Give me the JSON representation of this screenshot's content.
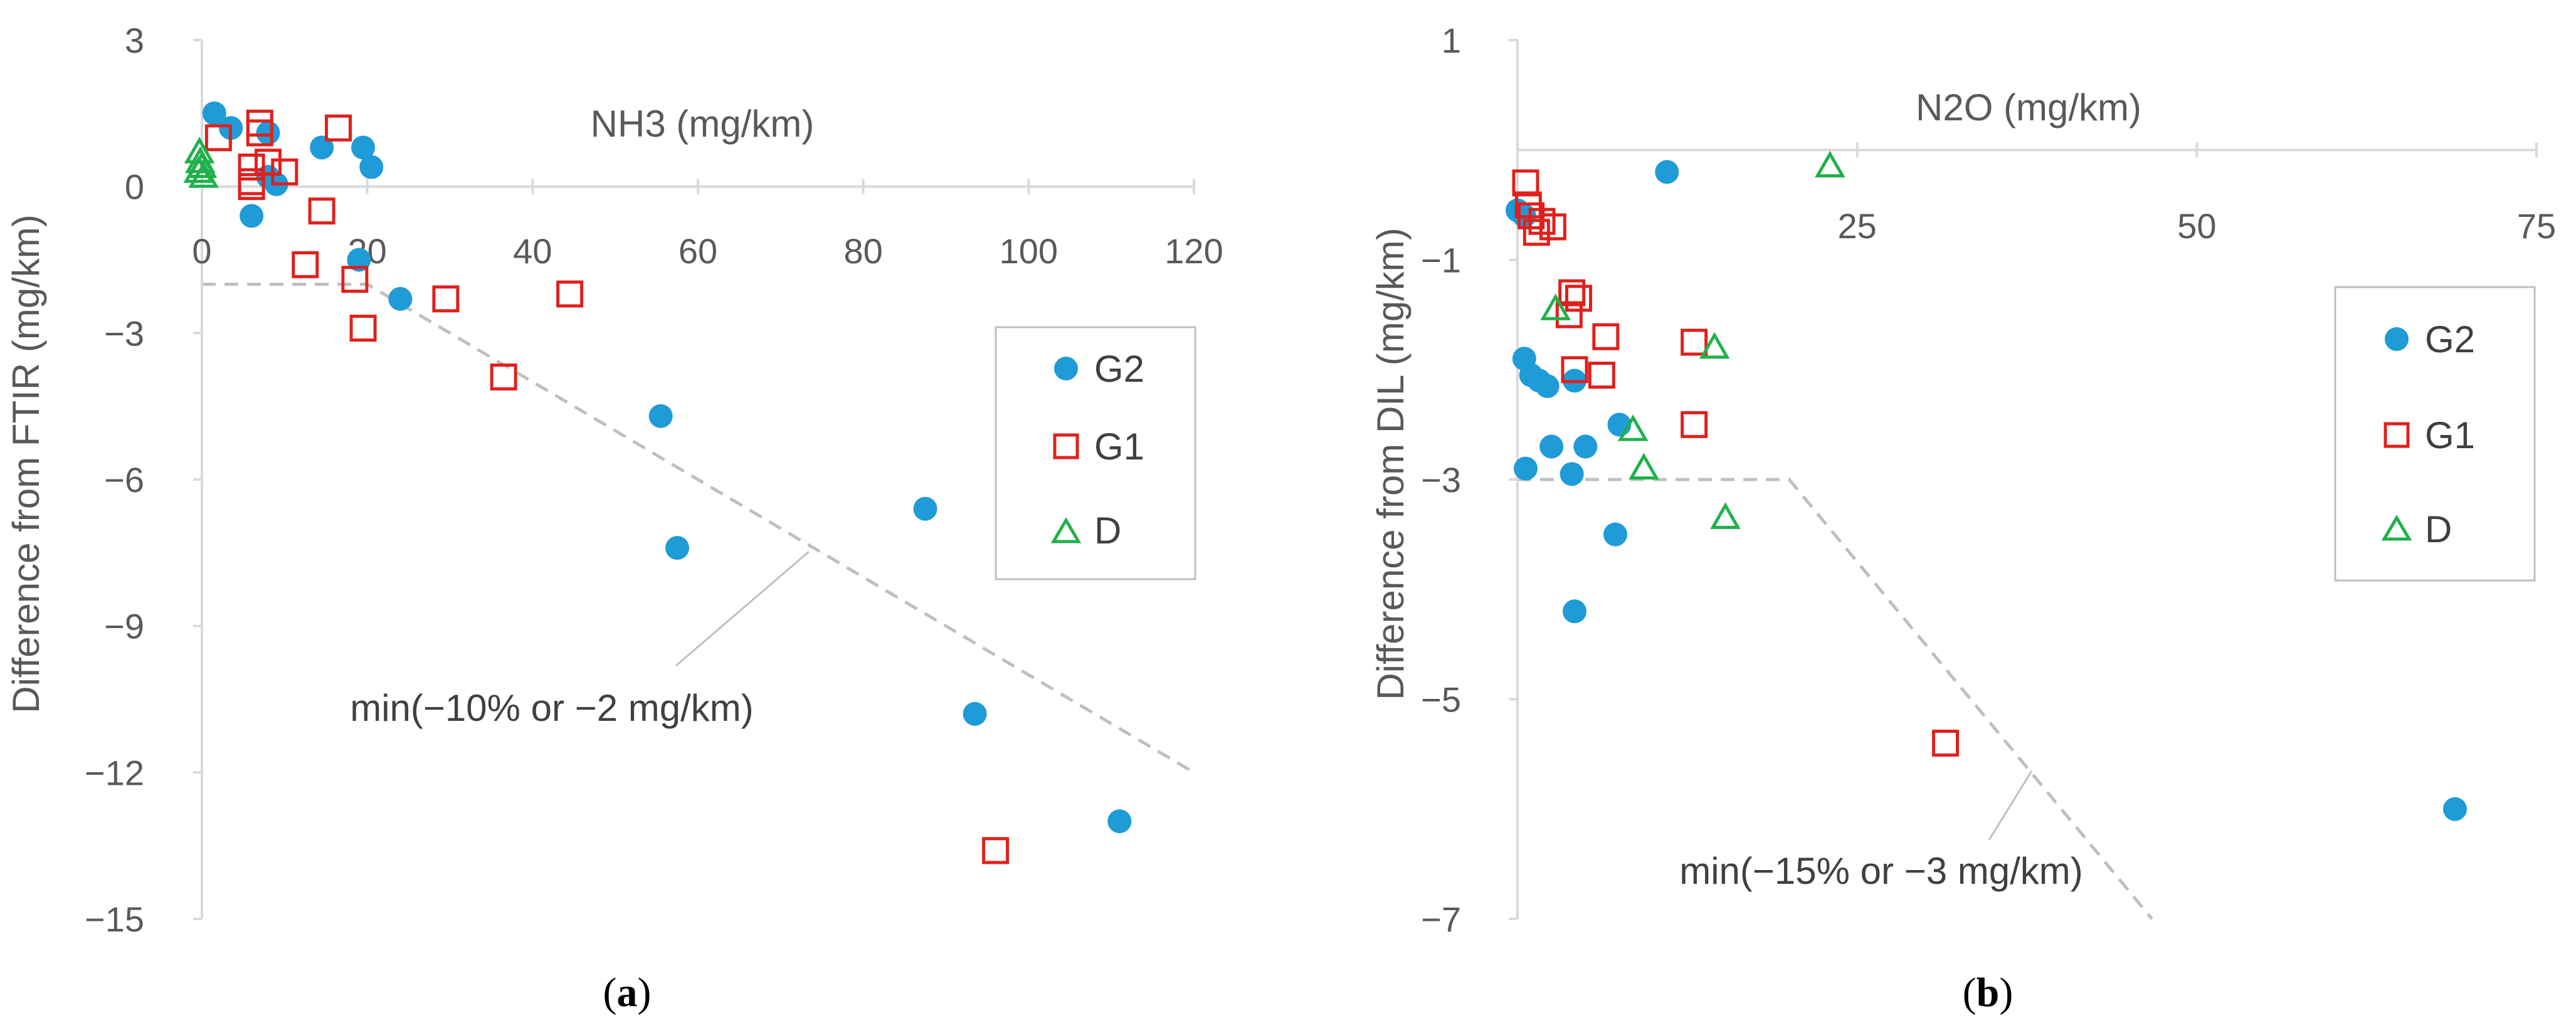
{
  "chart_data": [
    {
      "type": "scatter",
      "panel_label": "a",
      "xlabel": "NH3 (mg/km)",
      "ylabel": "Difference from FTIR (mg/km)",
      "xlim": [
        0,
        120
      ],
      "ylim": [
        -15,
        3
      ],
      "x_ticks": [
        "0",
        "20",
        "40",
        "60",
        "80",
        "100",
        "120"
      ],
      "y_ticks": [
        "3",
        "0",
        "−3",
        "−6",
        "−9",
        "−12",
        "−15"
      ],
      "legend": [
        "G2",
        "G1",
        "D"
      ],
      "series": [
        {
          "name": "G2",
          "marker": "filled-circle",
          "color": "#1f9bd7",
          "points": [
            [
              1.5,
              1.5
            ],
            [
              3.5,
              1.2
            ],
            [
              8,
              1.1
            ],
            [
              6,
              -0.6
            ],
            [
              8,
              0.2
            ],
            [
              9,
              0.05
            ],
            [
              14.5,
              0.8
            ],
            [
              19.5,
              0.8
            ],
            [
              20.5,
              0.4
            ],
            [
              19,
              -1.5
            ],
            [
              24,
              -2.3
            ],
            [
              55.5,
              -4.7
            ],
            [
              57.5,
              -7.4
            ],
            [
              87.5,
              -6.6
            ],
            [
              93.5,
              -10.8
            ],
            [
              111,
              -13
            ]
          ]
        },
        {
          "name": "G1",
          "marker": "open-square",
          "color": "#e0201c",
          "points": [
            [
              2,
              1
            ],
            [
              7,
              1.3
            ],
            [
              7,
              1.1
            ],
            [
              6,
              0.4
            ],
            [
              6,
              0.1
            ],
            [
              6,
              0
            ],
            [
              8,
              0.5
            ],
            [
              10,
              0.3
            ],
            [
              16.5,
              1.2
            ],
            [
              14.5,
              -0.5
            ],
            [
              12.5,
              -1.6
            ],
            [
              18.5,
              -1.9
            ],
            [
              19.5,
              -2.9
            ],
            [
              29.5,
              -2.3
            ],
            [
              44.5,
              -2.2
            ],
            [
              36.5,
              -3.9
            ],
            [
              96,
              -13.6
            ]
          ]
        },
        {
          "name": "D",
          "marker": "open-triangle",
          "color": "#1fb14a",
          "points": [
            [
              -0.3,
              0.7
            ],
            [
              -0.2,
              0.5
            ],
            [
              0,
              0.4
            ],
            [
              -0.4,
              0.3
            ],
            [
              0.2,
              0.2
            ]
          ]
        }
      ],
      "threshold_line": {
        "label": "min(−10% or −2 mg/km)",
        "points": [
          [
            0,
            -2
          ],
          [
            20,
            -2
          ],
          [
            120,
            -12
          ]
        ],
        "style": "dashed",
        "color": "#bfbfbf"
      }
    },
    {
      "type": "scatter",
      "panel_label": "b",
      "xlabel": "N2O (mg/km)",
      "ylabel": "Difference from DIL (mg/km)",
      "xlim": [
        0,
        75
      ],
      "ylim": [
        -7,
        1
      ],
      "x_ticks": [
        "25",
        "50",
        "75"
      ],
      "y_ticks": [
        "1",
        "−1",
        "−3",
        "−5",
        "−7"
      ],
      "legend": [
        "G2",
        "G1",
        "D"
      ],
      "series": [
        {
          "name": "G2",
          "marker": "filled-circle",
          "color": "#1f9bd7",
          "points": [
            [
              11,
              -0.2
            ],
            [
              0,
              -0.55
            ],
            [
              0.5,
              -0.6
            ],
            [
              0.5,
              -1.9
            ],
            [
              1,
              -2.05
            ],
            [
              1.6,
              -2.1
            ],
            [
              2.2,
              -2.15
            ],
            [
              4.2,
              -2.1
            ],
            [
              2.5,
              -2.7
            ],
            [
              5,
              -2.7
            ],
            [
              0.6,
              -2.9
            ],
            [
              4,
              -2.95
            ],
            [
              7.5,
              -2.5
            ],
            [
              7.2,
              -3.5
            ],
            [
              4.2,
              -4.2
            ],
            [
              69,
              -6
            ]
          ]
        },
        {
          "name": "G1",
          "marker": "open-square",
          "color": "#e0201c",
          "points": [
            [
              0.6,
              -0.3
            ],
            [
              0.8,
              -0.5
            ],
            [
              1,
              -0.6
            ],
            [
              1.8,
              -0.65
            ],
            [
              2.6,
              -0.7
            ],
            [
              1.4,
              -0.75
            ],
            [
              4,
              -1.3
            ],
            [
              4.5,
              -1.35
            ],
            [
              3.8,
              -1.5
            ],
            [
              6.5,
              -1.7
            ],
            [
              6.2,
              -2.05
            ],
            [
              4.2,
              -2.0
            ],
            [
              13,
              -1.75
            ],
            [
              13,
              -2.5
            ],
            [
              31.5,
              -5.4
            ]
          ]
        },
        {
          "name": "D",
          "marker": "open-triangle",
          "color": "#1fb14a",
          "points": [
            [
              23,
              -0.15
            ],
            [
              2.8,
              -1.45
            ],
            [
              14.5,
              -1.8
            ],
            [
              8.5,
              -2.55
            ],
            [
              9.3,
              -2.9
            ],
            [
              15.3,
              -3.35
            ]
          ]
        }
      ],
      "threshold_line": {
        "label": "min(−15% or −3 mg/km)",
        "points": [
          [
            0,
            -3
          ],
          [
            20,
            -3
          ],
          [
            46.7,
            -7
          ]
        ],
        "style": "dashed",
        "color": "#bfbfbf"
      }
    }
  ]
}
